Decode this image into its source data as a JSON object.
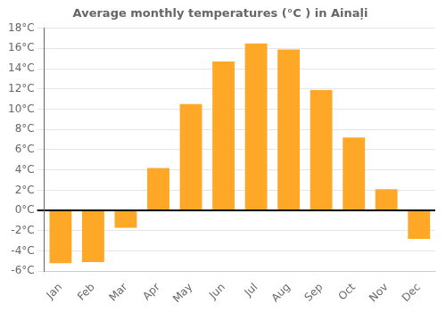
{
  "chart_data": {
    "type": "bar",
    "title": "Average monthly temperatures (°C ) in Ainaļi",
    "categories": [
      "Jan",
      "Feb",
      "Mar",
      "Apr",
      "May",
      "Jun",
      "Jul",
      "Aug",
      "Sep",
      "Oct",
      "Nov",
      "Dec"
    ],
    "values": [
      -5.2,
      -5.1,
      -1.7,
      4.2,
      10.5,
      14.7,
      16.5,
      15.9,
      11.9,
      7.2,
      2.1,
      -2.8
    ],
    "color": "#FFA726",
    "ylim": [
      -6,
      18
    ],
    "yticks": [
      {
        "value": -6,
        "label": "-6°C"
      },
      {
        "value": -4,
        "label": "-4°C"
      },
      {
        "value": -2,
        "label": "-2°C"
      },
      {
        "value": 0,
        "label": "0°C"
      },
      {
        "value": 2,
        "label": "2°C"
      },
      {
        "value": 4,
        "label": "4°C"
      },
      {
        "value": 6,
        "label": "6°C"
      },
      {
        "value": 8,
        "label": "8°C"
      },
      {
        "value": 10,
        "label": "10°C"
      },
      {
        "value": 12,
        "label": "12°C"
      },
      {
        "value": 14,
        "label": "14°C"
      },
      {
        "value": 16,
        "label": "16°C"
      },
      {
        "value": 18,
        "label": "18°C"
      }
    ],
    "grid": true
  }
}
